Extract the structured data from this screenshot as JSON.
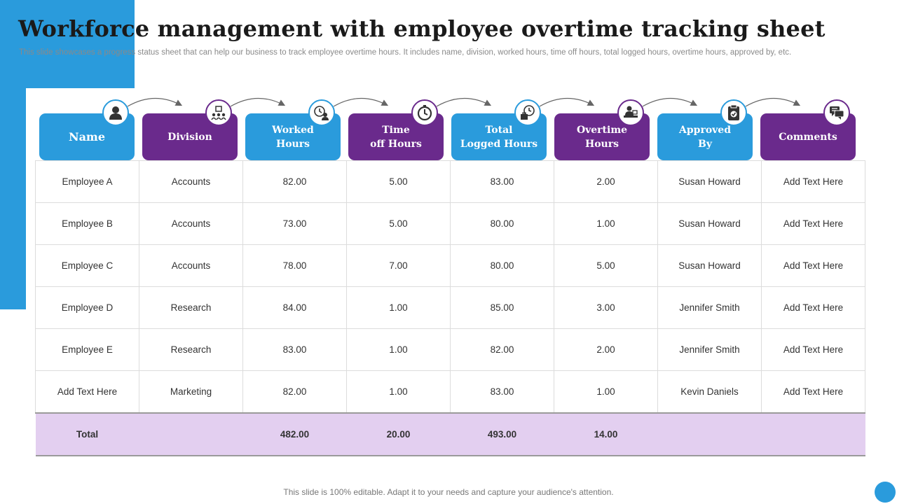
{
  "title": "Workforce  management  with  employee  overtime  tracking  sheet",
  "subtitle": "This slide showcases a progress status sheet that can help our business to track employee overtime hours. It includes name, division, worked hours, time off hours, total logged hours, overtime hours, approved by, etc.",
  "colors": {
    "blue": "#2A9BDC",
    "purple": "#6A2A8C",
    "total_row": "#E3CFF0"
  },
  "headers": [
    {
      "label": "Name",
      "icon": "user-icon"
    },
    {
      "label": "Division",
      "icon": "organization-icon"
    },
    {
      "label": "Worked\nHours",
      "icon": "clock-user-icon"
    },
    {
      "label": "Time\noff Hours",
      "icon": "stopwatch-icon"
    },
    {
      "label": "Total\nLogged Hours",
      "icon": "briefcase-clock-icon"
    },
    {
      "label": "Overtime\nHours",
      "icon": "desk-worker-icon"
    },
    {
      "label": "Approved\nBy",
      "icon": "clipboard-check-icon"
    },
    {
      "label": "Comments",
      "icon": "chat-bubbles-icon"
    }
  ],
  "rows": [
    [
      "Employee  A",
      "Accounts",
      "82.00",
      "5.00",
      "83.00",
      "2.00",
      "Susan Howard",
      "Add Text Here"
    ],
    [
      "Employee  B",
      "Accounts",
      "73.00",
      "5.00",
      "80.00",
      "1.00",
      "Susan Howard",
      "Add Text Here"
    ],
    [
      "Employee  C",
      "Accounts",
      "78.00",
      "7.00",
      "80.00",
      "5.00",
      "Susan Howard",
      "Add Text Here"
    ],
    [
      "Employee  D",
      "Research",
      "84.00",
      "1.00",
      "85.00",
      "3.00",
      "Jennifer  Smith",
      "Add Text Here"
    ],
    [
      "Employee  E",
      "Research",
      "83.00",
      "1.00",
      "82.00",
      "2.00",
      "Jennifer  Smith",
      "Add Text Here"
    ],
    [
      "Add Text Here",
      "Marketing",
      "82.00",
      "1.00",
      "83.00",
      "1.00",
      "Kevin  Daniels",
      "Add Text Here"
    ]
  ],
  "total_row": [
    "Total",
    "",
    "482.00",
    "20.00",
    "493.00",
    "14.00",
    "",
    ""
  ],
  "footer": "This slide is 100% editable. Adapt it to your needs and capture your audience's attention."
}
